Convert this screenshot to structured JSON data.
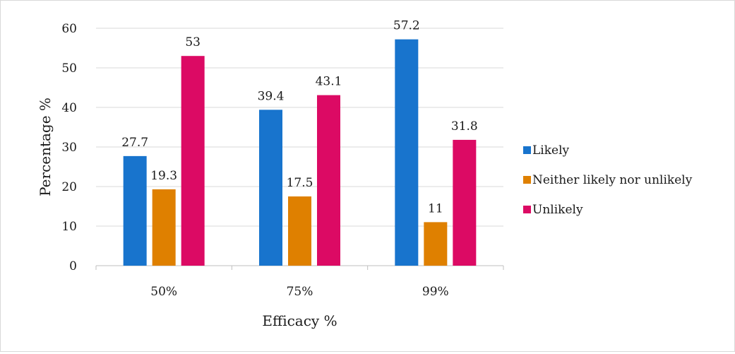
{
  "chart_data": {
    "type": "bar",
    "title": "",
    "xlabel": "Efficacy %",
    "ylabel": "Percentage %",
    "categories": [
      "50%",
      "75%",
      "99%"
    ],
    "ylim": [
      0,
      60
    ],
    "yticks": [
      0,
      10,
      20,
      30,
      40,
      50,
      60
    ],
    "grid": true,
    "legend_position": "right",
    "series": [
      {
        "name": "Likely",
        "values": [
          27.7,
          39.4,
          57.2
        ],
        "color": "#1874CD"
      },
      {
        "name": "Neither likely nor unlikely",
        "values": [
          19.3,
          17.5,
          11
        ],
        "color": "#DF8000"
      },
      {
        "name": "Unlikely",
        "values": [
          53,
          43.1,
          31.8
        ],
        "color": "#DC0A64"
      }
    ],
    "data_labels": [
      [
        "27.7",
        "39.4",
        "57.2"
      ],
      [
        "19.3",
        "17.5",
        "11"
      ],
      [
        "53",
        "43.1",
        "31.8"
      ]
    ]
  }
}
